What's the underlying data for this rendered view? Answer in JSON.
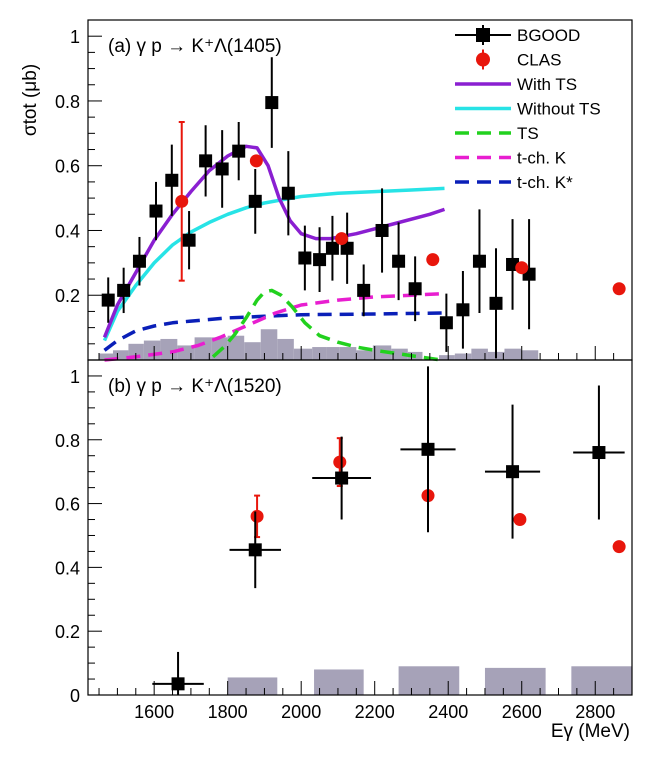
{
  "chart_data": [
    {
      "type": "scatter",
      "panel_label": "(a) γ p → K⁺Λ(1405)",
      "ylabel": "σtot (μb)",
      "xlabel": "",
      "xlim": [
        1420,
        2900
      ],
      "ylim": [
        0,
        1.05
      ],
      "x_ticks": [],
      "y_ticks": [
        0.2,
        0.4,
        0.6,
        0.8,
        1
      ],
      "y_tick_labels": [
        "0.2",
        "0.4",
        "0.6",
        "0.8",
        "1"
      ],
      "legend": {
        "position": "top-right",
        "entries": [
          {
            "label": "BGOOD",
            "kind": "marker-square",
            "color": "#000000"
          },
          {
            "label": "CLAS",
            "kind": "marker-circle",
            "color": "#e8160c"
          },
          {
            "label": "With TS",
            "kind": "line",
            "color": "#8a1fd1",
            "dash": "solid"
          },
          {
            "label": "Without TS",
            "kind": "line",
            "color": "#27e3e6",
            "dash": "solid"
          },
          {
            "label": "TS",
            "kind": "line",
            "color": "#22d11e",
            "dash": "dashed"
          },
          {
            "label": "t-ch. K",
            "kind": "line",
            "color": "#e81ed0",
            "dash": "dashed"
          },
          {
            "label": "t-ch. K*",
            "kind": "line",
            "color": "#0a1fb8",
            "dash": "dashed"
          }
        ]
      },
      "bgood": [
        {
          "x": 1475,
          "y": 0.185,
          "err": 0.07
        },
        {
          "x": 1517,
          "y": 0.215,
          "err": 0.07
        },
        {
          "x": 1560,
          "y": 0.305,
          "err": 0.075
        },
        {
          "x": 1605,
          "y": 0.46,
          "err": 0.09
        },
        {
          "x": 1648,
          "y": 0.555,
          "err": 0.11
        },
        {
          "x": 1695,
          "y": 0.37,
          "err": 0.09
        },
        {
          "x": 1740,
          "y": 0.615,
          "err": 0.11
        },
        {
          "x": 1785,
          "y": 0.59,
          "err": 0.12
        },
        {
          "x": 1830,
          "y": 0.645,
          "err": 0.09
        },
        {
          "x": 1875,
          "y": 0.49,
          "err": 0.1
        },
        {
          "x": 1920,
          "y": 0.795,
          "err": 0.14
        },
        {
          "x": 1965,
          "y": 0.515,
          "err": 0.13
        },
        {
          "x": 2010,
          "y": 0.315,
          "err": 0.1
        },
        {
          "x": 2050,
          "y": 0.31,
          "err": 0.1
        },
        {
          "x": 2085,
          "y": 0.345,
          "err": 0.1
        },
        {
          "x": 2125,
          "y": 0.345,
          "err": 0.11
        },
        {
          "x": 2170,
          "y": 0.215,
          "err": 0.08
        },
        {
          "x": 2220,
          "y": 0.4,
          "err": 0.13
        },
        {
          "x": 2265,
          "y": 0.305,
          "err": 0.12
        },
        {
          "x": 2310,
          "y": 0.22,
          "err": 0.1
        },
        {
          "x": 2395,
          "y": 0.115,
          "err": 0.09
        },
        {
          "x": 2440,
          "y": 0.155,
          "err": 0.12
        },
        {
          "x": 2485,
          "y": 0.305,
          "err": 0.16
        },
        {
          "x": 2530,
          "y": 0.175,
          "err": 0.17
        },
        {
          "x": 2575,
          "y": 0.295,
          "err": 0.14
        },
        {
          "x": 2620,
          "y": 0.265,
          "err": 0.17
        }
      ],
      "clas": [
        {
          "x": 1675,
          "y": 0.49,
          "err": 0.245
        },
        {
          "x": 1878,
          "y": 0.615,
          "err": 0.0
        },
        {
          "x": 2110,
          "y": 0.375,
          "err": 0.0
        },
        {
          "x": 2358,
          "y": 0.31,
          "err": 0.0
        },
        {
          "x": 2600,
          "y": 0.285,
          "err": 0.0
        },
        {
          "x": 2865,
          "y": 0.22,
          "err": 0.0
        }
      ],
      "curves": {
        "with_ts": [
          [
            1465,
            0.07
          ],
          [
            1500,
            0.17
          ],
          [
            1550,
            0.27
          ],
          [
            1600,
            0.37
          ],
          [
            1650,
            0.45
          ],
          [
            1700,
            0.52
          ],
          [
            1750,
            0.585
          ],
          [
            1800,
            0.63
          ],
          [
            1850,
            0.66
          ],
          [
            1880,
            0.655
          ],
          [
            1910,
            0.6
          ],
          [
            1940,
            0.5
          ],
          [
            1970,
            0.43
          ],
          [
            2000,
            0.39
          ],
          [
            2040,
            0.375
          ],
          [
            2080,
            0.375
          ],
          [
            2150,
            0.39
          ],
          [
            2250,
            0.42
          ],
          [
            2350,
            0.45
          ],
          [
            2390,
            0.465
          ]
        ],
        "without_ts": [
          [
            1465,
            0.06
          ],
          [
            1500,
            0.15
          ],
          [
            1550,
            0.23
          ],
          [
            1600,
            0.3
          ],
          [
            1650,
            0.355
          ],
          [
            1700,
            0.395
          ],
          [
            1750,
            0.425
          ],
          [
            1800,
            0.45
          ],
          [
            1850,
            0.47
          ],
          [
            1900,
            0.485
          ],
          [
            1950,
            0.495
          ],
          [
            2000,
            0.505
          ],
          [
            2100,
            0.515
          ],
          [
            2200,
            0.52
          ],
          [
            2300,
            0.525
          ],
          [
            2390,
            0.53
          ]
        ],
        "ts": [
          [
            1760,
            0.01
          ],
          [
            1790,
            0.04
          ],
          [
            1820,
            0.08
          ],
          [
            1850,
            0.13
          ],
          [
            1880,
            0.185
          ],
          [
            1900,
            0.21
          ],
          [
            1920,
            0.215
          ],
          [
            1945,
            0.2
          ],
          [
            1975,
            0.165
          ],
          [
            2010,
            0.115
          ],
          [
            2050,
            0.075
          ],
          [
            2100,
            0.055
          ],
          [
            2150,
            0.04
          ],
          [
            2200,
            0.03
          ],
          [
            2260,
            0.02
          ],
          [
            2320,
            0.01
          ],
          [
            2380,
            0.0
          ]
        ],
        "t_ch_k": [
          [
            1465,
            0.0
          ],
          [
            1550,
            0.01
          ],
          [
            1650,
            0.025
          ],
          [
            1720,
            0.045
          ],
          [
            1780,
            0.07
          ],
          [
            1830,
            0.095
          ],
          [
            1880,
            0.12
          ],
          [
            1930,
            0.145
          ],
          [
            2000,
            0.17
          ],
          [
            2100,
            0.185
          ],
          [
            2200,
            0.195
          ],
          [
            2300,
            0.2
          ],
          [
            2390,
            0.205
          ]
        ],
        "t_ch_kstar": [
          [
            1465,
            0.03
          ],
          [
            1500,
            0.06
          ],
          [
            1550,
            0.09
          ],
          [
            1600,
            0.105
          ],
          [
            1650,
            0.115
          ],
          [
            1700,
            0.12
          ],
          [
            1750,
            0.125
          ],
          [
            1800,
            0.13
          ],
          [
            1900,
            0.135
          ],
          [
            2000,
            0.14
          ],
          [
            2200,
            0.142
          ],
          [
            2390,
            0.145
          ]
        ]
      },
      "systematic_bars": [
        {
          "x0": 1450,
          "x1": 1488,
          "h": 0.02
        },
        {
          "x0": 1488,
          "x1": 1530,
          "h": 0.03
        },
        {
          "x0": 1530,
          "x1": 1572,
          "h": 0.05
        },
        {
          "x0": 1572,
          "x1": 1617,
          "h": 0.06
        },
        {
          "x0": 1617,
          "x1": 1663,
          "h": 0.065
        },
        {
          "x0": 1663,
          "x1": 1710,
          "h": 0.045
        },
        {
          "x0": 1710,
          "x1": 1755,
          "h": 0.07
        },
        {
          "x0": 1755,
          "x1": 1800,
          "h": 0.07
        },
        {
          "x0": 1800,
          "x1": 1845,
          "h": 0.075
        },
        {
          "x0": 1845,
          "x1": 1890,
          "h": 0.055
        },
        {
          "x0": 1890,
          "x1": 1935,
          "h": 0.095
        },
        {
          "x0": 1935,
          "x1": 1980,
          "h": 0.065
        },
        {
          "x0": 1980,
          "x1": 2030,
          "h": 0.035
        },
        {
          "x0": 2030,
          "x1": 2070,
          "h": 0.04
        },
        {
          "x0": 2070,
          "x1": 2105,
          "h": 0.04
        },
        {
          "x0": 2105,
          "x1": 2150,
          "h": 0.04
        },
        {
          "x0": 2150,
          "x1": 2195,
          "h": 0.03
        },
        {
          "x0": 2195,
          "x1": 2245,
          "h": 0.045
        },
        {
          "x0": 2245,
          "x1": 2290,
          "h": 0.035
        },
        {
          "x0": 2290,
          "x1": 2330,
          "h": 0.025
        },
        {
          "x0": 2375,
          "x1": 2418,
          "h": 0.015
        },
        {
          "x0": 2418,
          "x1": 2463,
          "h": 0.02
        },
        {
          "x0": 2463,
          "x1": 2508,
          "h": 0.035
        },
        {
          "x0": 2508,
          "x1": 2553,
          "h": 0.025
        },
        {
          "x0": 2553,
          "x1": 2598,
          "h": 0.035
        },
        {
          "x0": 2598,
          "x1": 2645,
          "h": 0.03
        }
      ]
    },
    {
      "type": "scatter",
      "panel_label": "(b) γ p → K⁺Λ(1520)",
      "xlabel": "Eγ (MeV)",
      "ylabel": "",
      "xlim": [
        1420,
        2900
      ],
      "ylim": [
        0,
        1.05
      ],
      "x_ticks": [
        1600,
        1800,
        2000,
        2200,
        2400,
        2600,
        2800
      ],
      "x_tick_labels": [
        "1600",
        "1800",
        "2000",
        "2200",
        "2400",
        "2600",
        "2800"
      ],
      "y_ticks": [
        0,
        0.2,
        0.4,
        0.6,
        0.8,
        1
      ],
      "y_tick_labels": [
        "0",
        "0.2",
        "0.4",
        "0.6",
        "0.8",
        "1"
      ],
      "bgood": [
        {
          "x": 1665,
          "y": 0.035,
          "err": 0.1,
          "xerr": 70
        },
        {
          "x": 1875,
          "y": 0.455,
          "err": 0.12,
          "xerr": 70
        },
        {
          "x": 2110,
          "y": 0.68,
          "err": 0.13,
          "xerr": 80
        },
        {
          "x": 2345,
          "y": 0.77,
          "err": 0.26,
          "xerr": 75
        },
        {
          "x": 2575,
          "y": 0.7,
          "err": 0.21,
          "xerr": 75
        },
        {
          "x": 2810,
          "y": 0.76,
          "err": 0.21,
          "xerr": 70
        }
      ],
      "clas": [
        {
          "x": 1880,
          "y": 0.56,
          "err": 0.065
        },
        {
          "x": 2105,
          "y": 0.73,
          "err": 0.075
        },
        {
          "x": 2345,
          "y": 0.625,
          "err": 0.0
        },
        {
          "x": 2595,
          "y": 0.55,
          "err": 0.0
        },
        {
          "x": 2865,
          "y": 0.465,
          "err": 0.0
        }
      ],
      "systematic_bars": [
        {
          "x0": 1800,
          "x1": 1935,
          "h": 0.055
        },
        {
          "x0": 2035,
          "x1": 2170,
          "h": 0.08
        },
        {
          "x0": 2265,
          "x1": 2430,
          "h": 0.09
        },
        {
          "x0": 2500,
          "x1": 2665,
          "h": 0.085
        },
        {
          "x0": 2735,
          "x1": 2900,
          "h": 0.09
        }
      ]
    }
  ]
}
